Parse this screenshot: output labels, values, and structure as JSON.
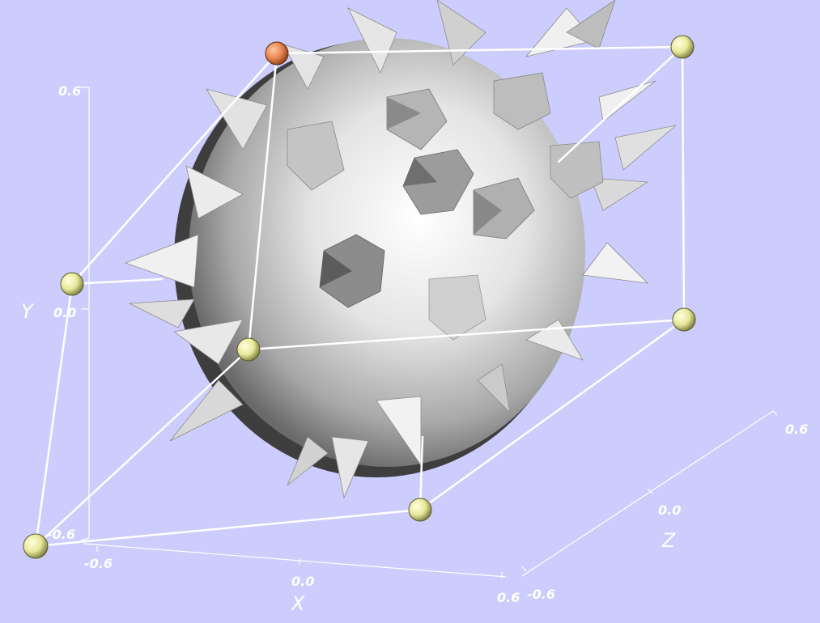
{
  "colors": {
    "background": "#cccdfd",
    "box_edges": "#ffffff",
    "handle": "#e8e89a",
    "handle_active": "#e8844f",
    "solid": "#dcdcdc"
  },
  "axes": {
    "x": {
      "title": "X",
      "min": "-0.6",
      "mid": "0.0",
      "max": "0.6"
    },
    "y": {
      "title": "Y",
      "min": "-0.6",
      "mid": "0.0",
      "max": "0.6"
    },
    "z": {
      "title": "Z",
      "min": "-0.6",
      "mid": "0.0",
      "max": "0.6"
    }
  },
  "handles": [
    {
      "id": "handle-1",
      "active": true
    },
    {
      "id": "handle-2",
      "active": false
    },
    {
      "id": "handle-3",
      "active": false
    },
    {
      "id": "handle-4",
      "active": false
    },
    {
      "id": "handle-5",
      "active": false
    },
    {
      "id": "handle-6",
      "active": false
    },
    {
      "id": "handle-7",
      "active": false
    },
    {
      "id": "handle-8",
      "active": false
    }
  ]
}
